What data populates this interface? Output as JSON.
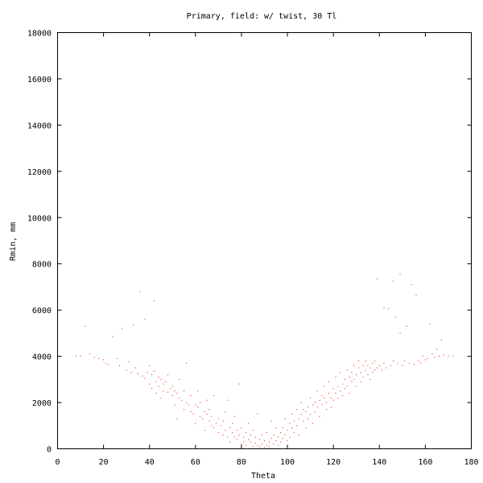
{
  "chart_data": {
    "type": "scatter",
    "title": "Primary, field: w/ twist, 30 Tl",
    "xlabel": "Theta",
    "ylabel": "Rmin, mm",
    "xlim": [
      0,
      180
    ],
    "ylim": [
      0,
      18000
    ],
    "xticks": [
      0,
      20,
      40,
      60,
      80,
      100,
      120,
      140,
      160,
      180
    ],
    "yticks": [
      0,
      2000,
      4000,
      6000,
      8000,
      10000,
      12000,
      14000,
      16000,
      18000
    ],
    "xtick_labels": [
      "0",
      "20",
      "40",
      "60",
      "80",
      "100",
      "120",
      "140",
      "160",
      "180"
    ],
    "ytick_labels": [
      "0",
      "2000",
      "4000",
      "6000",
      "8000",
      "10000",
      "12000",
      "14000",
      "16000",
      "18000"
    ],
    "grid": false,
    "marker_color": "#ff0000",
    "points": [
      [
        8,
        4000
      ],
      [
        10,
        4020
      ],
      [
        12,
        5300
      ],
      [
        14,
        4100
      ],
      [
        16,
        3950
      ],
      [
        18,
        3900
      ],
      [
        20,
        3850
      ],
      [
        21,
        3700
      ],
      [
        22,
        3650
      ],
      [
        24,
        4850
      ],
      [
        26,
        3900
      ],
      [
        27,
        3600
      ],
      [
        28,
        5200
      ],
      [
        30,
        3400
      ],
      [
        31,
        3750
      ],
      [
        32,
        3300
      ],
      [
        33,
        5350
      ],
      [
        34,
        3500
      ],
      [
        35,
        3250
      ],
      [
        36,
        6800
      ],
      [
        37,
        3150
      ],
      [
        38,
        5600
      ],
      [
        38,
        3050
      ],
      [
        39,
        3300
      ],
      [
        40,
        2800
      ],
      [
        40,
        3600
      ],
      [
        41,
        3200
      ],
      [
        41,
        2600
      ],
      [
        42,
        6400
      ],
      [
        42,
        3350
      ],
      [
        43,
        2900
      ],
      [
        43,
        2400
      ],
      [
        44,
        2700
      ],
      [
        44,
        3100
      ],
      [
        45,
        2200
      ],
      [
        45,
        3000
      ],
      [
        46,
        2800
      ],
      [
        46,
        2500
      ],
      [
        47,
        2900
      ],
      [
        48,
        2450
      ],
      [
        48,
        3200
      ],
      [
        49,
        2600
      ],
      [
        50,
        2300
      ],
      [
        50,
        2700
      ],
      [
        51,
        1900
      ],
      [
        51,
        2500
      ],
      [
        52,
        2400
      ],
      [
        52,
        1300
      ],
      [
        53,
        2200
      ],
      [
        53,
        3000
      ],
      [
        54,
        2100
      ],
      [
        55,
        2500
      ],
      [
        55,
        1700
      ],
      [
        56,
        2000
      ],
      [
        56,
        3700
      ],
      [
        57,
        1900
      ],
      [
        58,
        1600
      ],
      [
        58,
        2300
      ],
      [
        59,
        1500
      ],
      [
        60,
        1900
      ],
      [
        60,
        1100
      ],
      [
        61,
        1800
      ],
      [
        61,
        2500
      ],
      [
        62,
        1400
      ],
      [
        62,
        2000
      ],
      [
        63,
        1300
      ],
      [
        64,
        1600
      ],
      [
        64,
        800
      ],
      [
        65,
        1500
      ],
      [
        65,
        2100
      ],
      [
        66,
        1200
      ],
      [
        66,
        1700
      ],
      [
        67,
        1000
      ],
      [
        67,
        1400
      ],
      [
        68,
        900
      ],
      [
        68,
        2300
      ],
      [
        69,
        1100
      ],
      [
        70,
        700
      ],
      [
        70,
        1300
      ],
      [
        71,
        1000
      ],
      [
        72,
        600
      ],
      [
        72,
        1200
      ],
      [
        73,
        800
      ],
      [
        73,
        1600
      ],
      [
        74,
        500
      ],
      [
        74,
        2100
      ],
      [
        75,
        900
      ],
      [
        75,
        300
      ],
      [
        76,
        700
      ],
      [
        76,
        1100
      ],
      [
        77,
        500
      ],
      [
        77,
        1400
      ],
      [
        78,
        400
      ],
      [
        78,
        800
      ],
      [
        79,
        600
      ],
      [
        79,
        2800
      ],
      [
        80,
        200
      ],
      [
        80,
        900
      ],
      [
        81,
        500
      ],
      [
        81,
        300
      ],
      [
        82,
        700
      ],
      [
        82,
        150
      ],
      [
        83,
        400
      ],
      [
        83,
        1100
      ],
      [
        84,
        300
      ],
      [
        84,
        600
      ],
      [
        85,
        100
      ],
      [
        85,
        800
      ],
      [
        86,
        250
      ],
      [
        86,
        500
      ],
      [
        87,
        150
      ],
      [
        87,
        1500
      ],
      [
        88,
        400
      ],
      [
        88,
        80
      ],
      [
        89,
        200
      ],
      [
        89,
        600
      ],
      [
        90,
        50
      ],
      [
        90,
        350
      ],
      [
        91,
        150
      ],
      [
        91,
        700
      ],
      [
        92,
        300
      ],
      [
        92,
        100
      ],
      [
        93,
        450
      ],
      [
        93,
        1200
      ],
      [
        94,
        200
      ],
      [
        94,
        600
      ],
      [
        95,
        350
      ],
      [
        95,
        900
      ],
      [
        96,
        500
      ],
      [
        96,
        150
      ],
      [
        97,
        700
      ],
      [
        97,
        300
      ],
      [
        98,
        900
      ],
      [
        98,
        450
      ],
      [
        99,
        600
      ],
      [
        99,
        1300
      ],
      [
        100,
        800
      ],
      [
        100,
        350
      ],
      [
        101,
        1100
      ],
      [
        101,
        500
      ],
      [
        102,
        900
      ],
      [
        102,
        1500
      ],
      [
        103,
        1200
      ],
      [
        103,
        700
      ],
      [
        104,
        1000
      ],
      [
        104,
        1700
      ],
      [
        105,
        1300
      ],
      [
        105,
        600
      ],
      [
        106,
        1500
      ],
      [
        106,
        2000
      ],
      [
        107,
        1200
      ],
      [
        107,
        1700
      ],
      [
        108,
        1600
      ],
      [
        108,
        900
      ],
      [
        109,
        1800
      ],
      [
        109,
        1300
      ],
      [
        110,
        1500
      ],
      [
        110,
        2200
      ],
      [
        111,
        1900
      ],
      [
        111,
        1100
      ],
      [
        112,
        2000
      ],
      [
        112,
        1600
      ],
      [
        113,
        1800
      ],
      [
        113,
        2500
      ],
      [
        114,
        2100
      ],
      [
        114,
        1400
      ],
      [
        115,
        2300
      ],
      [
        115,
        1900
      ],
      [
        116,
        2200
      ],
      [
        116,
        2700
      ],
      [
        117,
        2000
      ],
      [
        117,
        1700
      ],
      [
        118,
        2400
      ],
      [
        118,
        2900
      ],
      [
        119,
        2200
      ],
      [
        119,
        1800
      ],
      [
        120,
        2600
      ],
      [
        120,
        2100
      ],
      [
        121,
        2400
      ],
      [
        121,
        3100
      ],
      [
        122,
        2700
      ],
      [
        122,
        2200
      ],
      [
        123,
        2500
      ],
      [
        123,
        3300
      ],
      [
        124,
        2800
      ],
      [
        124,
        2300
      ],
      [
        125,
        3000
      ],
      [
        125,
        2600
      ],
      [
        126,
        3400
      ],
      [
        126,
        2700
      ],
      [
        127,
        3100
      ],
      [
        127,
        2400
      ],
      [
        128,
        3300
      ],
      [
        128,
        2900
      ],
      [
        129,
        3600
      ],
      [
        129,
        3000
      ],
      [
        130,
        3200
      ],
      [
        130,
        2700
      ],
      [
        131,
        3500
      ],
      [
        131,
        3800
      ],
      [
        132,
        3300
      ],
      [
        132,
        2900
      ],
      [
        133,
        3600
      ],
      [
        133,
        3100
      ],
      [
        134,
        3400
      ],
      [
        134,
        3800
      ],
      [
        135,
        3200
      ],
      [
        135,
        3600
      ],
      [
        136,
        3500
      ],
      [
        136,
        3000
      ],
      [
        137,
        3700
      ],
      [
        137,
        3300
      ],
      [
        138,
        3400
      ],
      [
        138,
        3800
      ],
      [
        139,
        7350
      ],
      [
        139,
        3500
      ],
      [
        140,
        3600
      ],
      [
        141,
        3400
      ],
      [
        142,
        6100
      ],
      [
        142,
        3700
      ],
      [
        143,
        3500
      ],
      [
        144,
        6050
      ],
      [
        145,
        3600
      ],
      [
        146,
        7250
      ],
      [
        146,
        3800
      ],
      [
        147,
        5700
      ],
      [
        148,
        3700
      ],
      [
        149,
        7550
      ],
      [
        149,
        5000
      ],
      [
        150,
        3600
      ],
      [
        151,
        3800
      ],
      [
        152,
        5300
      ],
      [
        153,
        3700
      ],
      [
        154,
        7100
      ],
      [
        155,
        3650
      ],
      [
        156,
        6650
      ],
      [
        157,
        3800
      ],
      [
        158,
        3700
      ],
      [
        159,
        4000
      ],
      [
        160,
        3850
      ],
      [
        161,
        3900
      ],
      [
        162,
        5400
      ],
      [
        163,
        4100
      ],
      [
        164,
        3950
      ],
      [
        165,
        4300
      ],
      [
        166,
        4000
      ],
      [
        167,
        4700
      ],
      [
        168,
        4050
      ],
      [
        170,
        4000
      ],
      [
        172,
        4020
      ]
    ]
  }
}
